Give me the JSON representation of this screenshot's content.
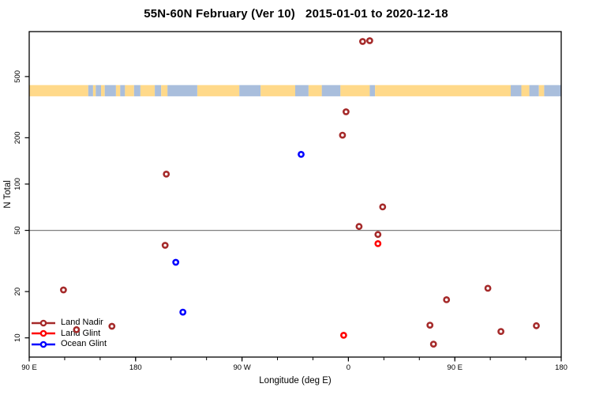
{
  "chart_data": {
    "type": "scatter",
    "title": "55N-60N February (Ver 10)   2015-01-01 to 2020-12-18",
    "xlabel": "Longitude (deg E)",
    "ylabel": "N Total",
    "x_axis": {
      "range": [
        90,
        540
      ],
      "minor_tick_step": 30,
      "major_ticks": [
        {
          "value": 90,
          "label": "90 E"
        },
        {
          "value": 180,
          "label": "180"
        },
        {
          "value": 270,
          "label": "90 W"
        },
        {
          "value": 360,
          "label": "0"
        },
        {
          "value": 450,
          "label": "90 E"
        },
        {
          "value": 540,
          "label": "180"
        }
      ]
    },
    "y_axis": {
      "scale": "log",
      "range": [
        7.5,
        980
      ],
      "ticks": [
        10,
        20,
        50,
        100,
        200,
        500
      ]
    },
    "reference_line": {
      "n": 50,
      "color": "#7f7f7f"
    },
    "map_strip": {
      "description": "land/ocean map band for 55N-60N latitude",
      "n_range": [
        372,
        440
      ],
      "land_color": "#FFD98A",
      "ocean_color": "#A9BEDC",
      "segments": [
        [
          0.0,
          0.111,
          "land"
        ],
        [
          0.111,
          0.12,
          "ocean"
        ],
        [
          0.12,
          0.125,
          "land"
        ],
        [
          0.125,
          0.135,
          "ocean"
        ],
        [
          0.135,
          0.142,
          "land"
        ],
        [
          0.142,
          0.163,
          "ocean"
        ],
        [
          0.163,
          0.171,
          "land"
        ],
        [
          0.171,
          0.18,
          "ocean"
        ],
        [
          0.18,
          0.197,
          "land"
        ],
        [
          0.197,
          0.209,
          "ocean"
        ],
        [
          0.209,
          0.236,
          "land"
        ],
        [
          0.236,
          0.248,
          "ocean"
        ],
        [
          0.248,
          0.26,
          "land"
        ],
        [
          0.26,
          0.316,
          "ocean"
        ],
        [
          0.316,
          0.395,
          "land"
        ],
        [
          0.395,
          0.435,
          "ocean"
        ],
        [
          0.435,
          0.5,
          "land"
        ],
        [
          0.5,
          0.525,
          "ocean"
        ],
        [
          0.525,
          0.55,
          "land"
        ],
        [
          0.55,
          0.585,
          "ocean"
        ],
        [
          0.585,
          0.64,
          "land"
        ],
        [
          0.64,
          0.65,
          "ocean"
        ],
        [
          0.65,
          0.905,
          "land"
        ],
        [
          0.905,
          0.925,
          "ocean"
        ],
        [
          0.925,
          0.94,
          "land"
        ],
        [
          0.94,
          0.958,
          "ocean"
        ],
        [
          0.958,
          0.968,
          "land"
        ],
        [
          0.968,
          1.0,
          "ocean"
        ]
      ]
    },
    "series": [
      {
        "name": "Land Nadir",
        "color": "#A52A2A",
        "points": [
          [
            372,
            845
          ],
          [
            378,
            855
          ],
          [
            358,
            295
          ],
          [
            355,
            208
          ],
          [
            206,
            116
          ],
          [
            389,
            71
          ],
          [
            369,
            53
          ],
          [
            385,
            47
          ],
          [
            205,
            40
          ],
          [
            119,
            20.5
          ],
          [
            478,
            21
          ],
          [
            443,
            17.7
          ],
          [
            429,
            12.1
          ],
          [
            519,
            12
          ],
          [
            489,
            11
          ],
          [
            160,
            11.9
          ],
          [
            130,
            11.3
          ],
          [
            432,
            9.1
          ]
        ]
      },
      {
        "name": "Land Glint",
        "color": "#FF0000",
        "points": [
          [
            385,
            41
          ],
          [
            356,
            10.4
          ]
        ]
      },
      {
        "name": "Ocean Glint",
        "color": "#0000FF",
        "points": [
          [
            320,
            156
          ],
          [
            214,
            31
          ],
          [
            220,
            14.7
          ]
        ]
      }
    ],
    "legend_position": "bottom-left"
  }
}
